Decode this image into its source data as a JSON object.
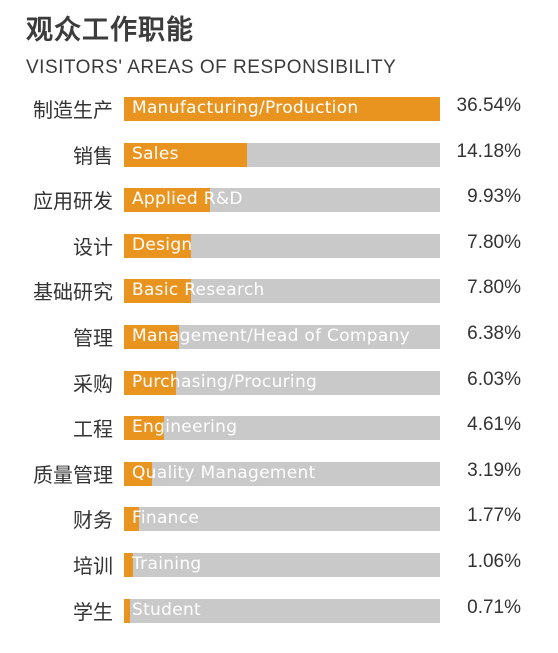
{
  "header": {
    "title_cn": "观众工作职能",
    "title_en": "VISITORS' AREAS OF RESPONSIBILITY"
  },
  "colors": {
    "bar_fill": "#ea9420",
    "bar_track": "#c9c9c9"
  },
  "chart_data": {
    "type": "bar",
    "orientation": "horizontal",
    "title": "观众工作职能",
    "subtitle": "VISITORS' AREAS OF RESPONSIBILITY",
    "xlim": [
      0,
      36.54
    ],
    "categories_cn": [
      "制造生产",
      "销售",
      "应用研发",
      "设计",
      "基础研究",
      "管理",
      "采购",
      "工程",
      "质量管理",
      "财务",
      "培训",
      "学生"
    ],
    "categories_en": [
      "Manufacturing/Production",
      "Sales",
      "Applied R&D",
      "Design",
      "Basic Research",
      "Management/Head of Company",
      "Purchasing/Procuring",
      "Engineering",
      "Quality Management",
      "Finance",
      "Training",
      "Student"
    ],
    "values": [
      36.54,
      14.18,
      9.93,
      7.8,
      7.8,
      6.38,
      6.03,
      4.61,
      3.19,
      1.77,
      1.06,
      0.71
    ],
    "value_labels": [
      "36.54%",
      "14.18%",
      "9.93%",
      "7.80%",
      "7.80%",
      "6.38%",
      "6.03%",
      "4.61%",
      "3.19%",
      "1.77%",
      "1.06%",
      "0.71%"
    ]
  }
}
